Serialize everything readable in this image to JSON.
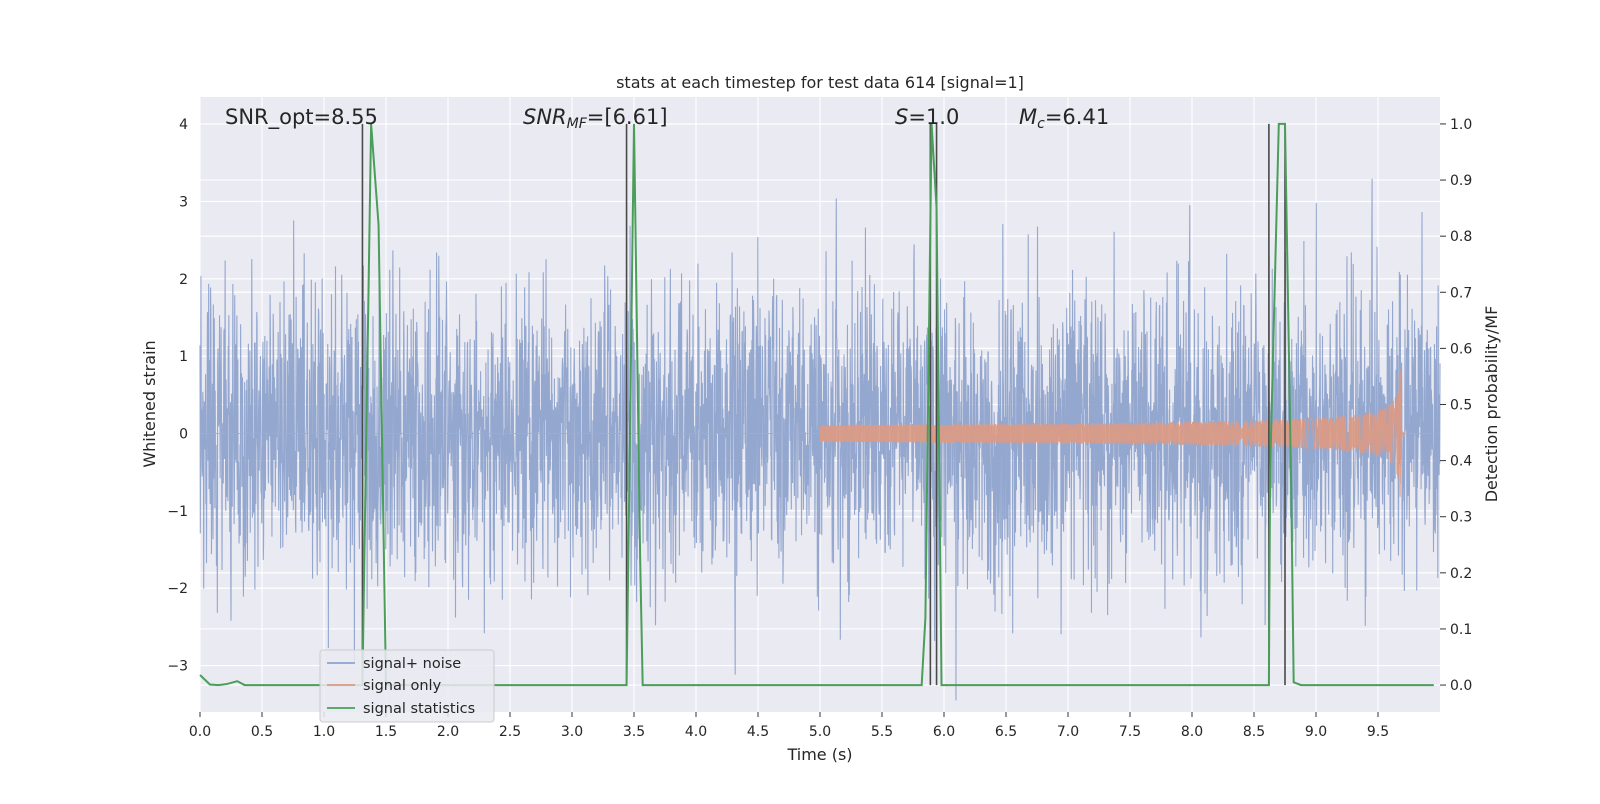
{
  "chart_data": {
    "type": "line",
    "title": "stats at each timestep for test data 614 [signal=1]",
    "xlabel": "Time (s)",
    "ylabel_left": "Whitened strain",
    "ylabel_right": "Detection probability/MF",
    "xlim": [
      0,
      10
    ],
    "ylim_left": [
      -3.6,
      4.35
    ],
    "ylim_right": [
      -0.048,
      1.048
    ],
    "grid": true,
    "legend_placement": "lower-left",
    "x_ticks": [
      "0.0",
      "0.5",
      "1.0",
      "1.5",
      "2.0",
      "2.5",
      "3.0",
      "3.5",
      "4.0",
      "4.5",
      "5.0",
      "5.5",
      "6.0",
      "6.5",
      "7.0",
      "7.5",
      "8.0",
      "8.5",
      "9.0",
      "9.5"
    ],
    "x_tick_values": [
      0,
      0.5,
      1,
      1.5,
      2,
      2.5,
      3,
      3.5,
      4,
      4.5,
      5,
      5.5,
      6,
      6.5,
      7,
      7.5,
      8,
      8.5,
      9,
      9.5
    ],
    "y_ticks_left": [
      "−3",
      "−2",
      "−1",
      "0",
      "1",
      "2",
      "3",
      "4"
    ],
    "y_tick_values_left": [
      -3,
      -2,
      -1,
      0,
      1,
      2,
      3,
      4
    ],
    "y_ticks_right": [
      "0.0",
      "0.1",
      "0.2",
      "0.3",
      "0.4",
      "0.5",
      "0.6",
      "0.7",
      "0.8",
      "0.9",
      "1.0"
    ],
    "y_tick_values_right": [
      0,
      0.1,
      0.2,
      0.3,
      0.4,
      0.5,
      0.6,
      0.7,
      0.8,
      0.9,
      1.0
    ],
    "annotations": {
      "snr_opt": "SNR_opt=8.55",
      "snr_mf_main": "SNR",
      "snr_mf_sub": "MF",
      "snr_mf_value": "=[6.61]",
      "s_main": "S",
      "s_value": "=1.0",
      "mc_main": "M",
      "mc_sub": "c",
      "mc_value": "=6.41"
    },
    "series": [
      {
        "name": "signal+ noise",
        "color": "#8fa3cc",
        "description_values": "whitened strain noise, approximately Gaussian, amplitude within about ±2.5 with peaks near ±4"
      },
      {
        "name": "signal only",
        "color": "#dd9a82",
        "chirp": {
          "start": 5.0,
          "peak_time": 9.68,
          "peak_amplitude": 0.95
        }
      },
      {
        "name": "signal statistics",
        "color": "#4a9e5a",
        "axis": "right",
        "x": [
          0.0,
          0.08,
          0.15,
          0.22,
          0.3,
          0.36,
          0.42,
          1.31,
          1.32,
          1.38,
          1.44,
          1.5,
          1.56,
          3.44,
          3.46,
          3.5,
          3.55,
          3.57,
          5.82,
          5.85,
          5.9,
          5.94,
          5.98,
          6.0,
          8.62,
          8.63,
          8.7,
          8.75,
          8.8,
          8.82,
          8.88,
          9.95
        ],
        "y": [
          0.018,
          0.001,
          0.0,
          0.002,
          0.007,
          0.0,
          0.0,
          0.0,
          0.15,
          1.0,
          0.82,
          0.0,
          0.0,
          0.0,
          0.32,
          1.0,
          0.22,
          0.0,
          0.0,
          0.12,
          1.0,
          0.85,
          0.0,
          0.0,
          0.0,
          0.38,
          1.0,
          1.0,
          0.35,
          0.005,
          0.0,
          0.0
        ]
      }
    ],
    "vertical_lines": {
      "color": "#4a4a4a",
      "x": [
        1.31,
        3.44,
        5.89,
        5.94,
        8.62,
        8.75
      ],
      "range_right": [
        0.0,
        1.0
      ]
    },
    "legend": {
      "entries": [
        "signal+ noise",
        "signal only",
        "signal statistics"
      ]
    },
    "colors": {
      "plot_background": "#eaeaf2",
      "grid": "#ffffff"
    }
  }
}
